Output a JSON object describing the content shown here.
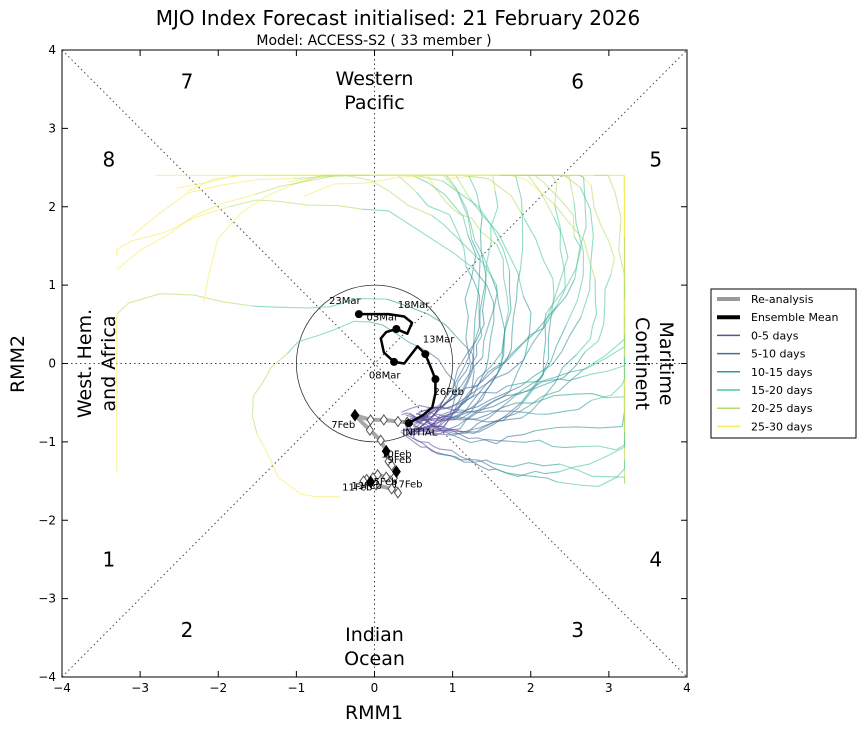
{
  "title": "MJO Index Forecast initialised:  21  February 2026",
  "subtitle": "Model: ACCESS-S2 ( 33 member )",
  "chart_data": {
    "type": "scatter",
    "title": "MJO Index Forecast initialised:  21  February 2026",
    "subtitle": "Model: ACCESS-S2 ( 33 member )",
    "xlabel": "RMM1",
    "ylabel": "RMM2",
    "xlim": [
      -4,
      4
    ],
    "ylim": [
      -4,
      4
    ],
    "xticks": [
      -4,
      -3,
      -2,
      -1,
      0,
      1,
      2,
      3,
      4
    ],
    "yticks": [
      -4,
      -3,
      -2,
      -1,
      0,
      1,
      2,
      3,
      4
    ],
    "unit_circle_radius": 1,
    "phase_labels": [
      {
        "text": "1",
        "x": -3.4,
        "y": -2.5
      },
      {
        "text": "2",
        "x": -2.4,
        "y": -3.4
      },
      {
        "text": "3",
        "x": 2.6,
        "y": -3.4
      },
      {
        "text": "4",
        "x": 3.6,
        "y": -2.5
      },
      {
        "text": "5",
        "x": 3.6,
        "y": 2.6
      },
      {
        "text": "6",
        "x": 2.6,
        "y": 3.6
      },
      {
        "text": "7",
        "x": -2.4,
        "y": 3.6
      },
      {
        "text": "8",
        "x": -3.4,
        "y": 2.6
      }
    ],
    "regions": {
      "top": [
        "Western",
        "Pacific"
      ],
      "bottom": [
        "Indian",
        "Ocean"
      ],
      "left": [
        "West. Hem.",
        "and Africa"
      ],
      "right": [
        "Maritime",
        "Continent"
      ]
    },
    "reanalysis": {
      "name": "Re-analysis",
      "points": [
        [
          0.42,
          -0.75
        ],
        [
          0.3,
          -0.74
        ],
        [
          0.12,
          -0.72
        ],
        [
          -0.05,
          -0.72
        ],
        [
          -0.25,
          -0.66
        ],
        [
          -0.06,
          -0.85
        ],
        [
          0.08,
          -0.98
        ],
        [
          0.15,
          -1.12
        ],
        [
          0.18,
          -1.25
        ],
        [
          0.22,
          -1.3
        ],
        [
          0.28,
          -1.38
        ],
        [
          0.25,
          -1.46
        ],
        [
          0.15,
          -1.45
        ],
        [
          0.04,
          -1.42
        ],
        [
          -0.02,
          -1.46
        ],
        [
          -0.05,
          -1.51
        ],
        [
          -0.1,
          -1.48
        ],
        [
          -0.14,
          -1.5
        ],
        [
          0.02,
          -1.55
        ],
        [
          0.22,
          -1.6
        ],
        [
          0.3,
          -1.65
        ]
      ],
      "filled_dates": [
        {
          "x": -0.25,
          "y": -0.66
        },
        {
          "x": 0.15,
          "y": -1.12
        },
        {
          "x": 0.28,
          "y": -1.38
        },
        {
          "x": -0.05,
          "y": -1.51
        }
      ],
      "labels": [
        {
          "text": "7Feb",
          "x": -0.4,
          "y": -0.82
        },
        {
          "text": "9Feb",
          "x": 0.32,
          "y": -1.27
        },
        {
          "text": "10Feb",
          "x": 0.28,
          "y": -1.2
        },
        {
          "text": "11Feb",
          "x": -0.22,
          "y": -1.62
        },
        {
          "text": "13Feb",
          "x": -0.1,
          "y": -1.6
        },
        {
          "text": "15Feb",
          "x": 0.1,
          "y": -1.55
        },
        {
          "text": "17Feb",
          "x": 0.42,
          "y": -1.58
        }
      ]
    },
    "ensemble_mean": {
      "name": "Ensemble Mean",
      "points": [
        [
          0.44,
          -0.76
        ],
        [
          0.62,
          -0.66
        ],
        [
          0.74,
          -0.56
        ],
        [
          0.78,
          -0.38
        ],
        [
          0.78,
          -0.2
        ],
        [
          0.72,
          -0.05
        ],
        [
          0.65,
          0.12
        ],
        [
          0.55,
          0.22
        ],
        [
          0.38,
          0.0
        ],
        [
          0.25,
          0.02
        ],
        [
          0.12,
          0.14
        ],
        [
          0.08,
          0.32
        ],
        [
          0.15,
          0.4
        ],
        [
          0.28,
          0.44
        ],
        [
          0.42,
          0.38
        ],
        [
          0.48,
          0.52
        ],
        [
          0.38,
          0.6
        ],
        [
          0.18,
          0.63
        ],
        [
          0.0,
          0.63
        ],
        [
          -0.2,
          0.63
        ]
      ],
      "markers": [
        {
          "x": 0.44,
          "y": -0.76
        },
        {
          "x": 0.78,
          "y": -0.2
        },
        {
          "x": 0.65,
          "y": 0.12
        },
        {
          "x": 0.25,
          "y": 0.02
        },
        {
          "x": 0.28,
          "y": 0.44
        },
        {
          "x": -0.2,
          "y": 0.63
        }
      ],
      "labels": [
        {
          "text": "INITIAL",
          "x": 0.58,
          "y": -0.92
        },
        {
          "text": "26Feb",
          "x": 0.95,
          "y": -0.4
        },
        {
          "text": "13Mar",
          "x": 0.82,
          "y": 0.27
        },
        {
          "text": "08Mar",
          "x": 0.13,
          "y": -0.19
        },
        {
          "text": "03Mar",
          "x": 0.1,
          "y": 0.55
        },
        {
          "text": "18Mar",
          "x": 0.5,
          "y": 0.71
        },
        {
          "text": "23Mar",
          "x": -0.38,
          "y": 0.76
        }
      ]
    },
    "legend": {
      "position": "outside-right",
      "entries": [
        {
          "label": "Re-analysis",
          "color": "#999999",
          "width": 4
        },
        {
          "label": "Ensemble Mean",
          "color": "#000000",
          "width": 4
        },
        {
          "label": "0-5 days",
          "color": "#5e4e9c",
          "width": 1
        },
        {
          "label": "5-10 days",
          "color": "#40719a",
          "width": 1
        },
        {
          "label": "10-15 days",
          "color": "#2e9b98",
          "width": 1
        },
        {
          "label": "15-20 days",
          "color": "#4fc79a",
          "width": 1
        },
        {
          "label": "20-25 days",
          "color": "#b3de65",
          "width": 1
        },
        {
          "label": "25-30 days",
          "color": "#f7ec5a",
          "width": 1
        }
      ]
    }
  }
}
